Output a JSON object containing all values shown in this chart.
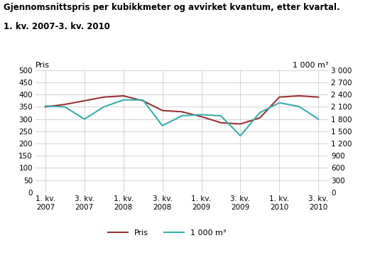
{
  "title_line1": "Gjennomsnittspris per kubikkmeter og avvirket kvantum, etter kvartal.",
  "title_line2": "1. kv. 2007-3. kv. 2010",
  "x_labels": [
    "1. kv.\n2007",
    "3. kv.\n2007",
    "1. kv.\n2008",
    "3. kv.\n2008",
    "1. kv.\n2009",
    "3. kv.\n2009",
    "1. kv.\n2010",
    "3. kv.\n2010"
  ],
  "x_positions": [
    0,
    2,
    4,
    6,
    8,
    10,
    12,
    14
  ],
  "pris_x": [
    0,
    1,
    2,
    3,
    4,
    5,
    6,
    7,
    8,
    9,
    10,
    11,
    12,
    13,
    14
  ],
  "pris_values": [
    350,
    360,
    375,
    390,
    395,
    375,
    335,
    330,
    310,
    285,
    280,
    305,
    390,
    395,
    390
  ],
  "kvantum_x": [
    0,
    1,
    2,
    3,
    4,
    5,
    6,
    7,
    8,
    9,
    10,
    11,
    12,
    13,
    14
  ],
  "kvantum_values": [
    2120,
    2100,
    1800,
    2100,
    2270,
    2270,
    1640,
    1880,
    1910,
    1880,
    1390,
    1960,
    2200,
    2110,
    1800
  ],
  "pris_color": "#993333",
  "kvantum_color": "#3aadad",
  "ylabel_left": "Pris",
  "ylabel_right": "1 000 m³",
  "ylim_left": [
    0,
    500
  ],
  "ylim_right": [
    0,
    3000
  ],
  "yticks_left": [
    0,
    50,
    100,
    150,
    200,
    250,
    300,
    350,
    400,
    450,
    500
  ],
  "yticks_right": [
    0,
    300,
    600,
    900,
    1200,
    1500,
    1800,
    2100,
    2400,
    2700,
    3000
  ],
  "ytick_labels_right": [
    "0",
    "300",
    "600",
    "900",
    "1 200",
    "1 500",
    "1 800",
    "2 100",
    "2 400",
    "2 700",
    "3 000"
  ],
  "legend_pris": "Pris",
  "legend_kvantum": "1 000 m³",
  "fig_background": "#ffffff",
  "plot_background": "#ffffff",
  "grid_color": "#cccccc",
  "line_width": 1.5,
  "title_separator_color": "#aaaaaa"
}
